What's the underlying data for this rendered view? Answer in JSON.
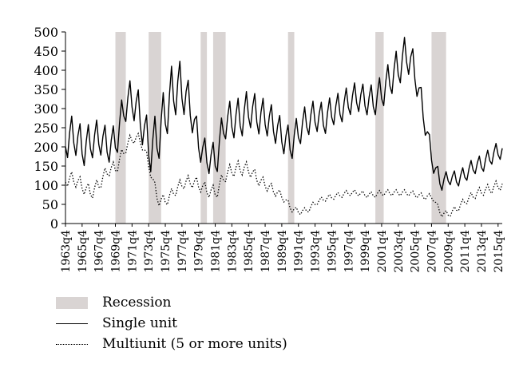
{
  "chart_data": {
    "type": "line",
    "ylim": [
      0,
      500
    ],
    "yticks": [
      0,
      50,
      100,
      150,
      200,
      250,
      300,
      350,
      400,
      450,
      500
    ],
    "x_start": "1963q4",
    "xticks": [
      "1963q4",
      "1965q4",
      "1967q4",
      "1969q4",
      "1971q4",
      "1973q4",
      "1975q4",
      "1977q4",
      "1979q4",
      "1981q4",
      "1983q4",
      "1985q4",
      "1987q4",
      "1989q4",
      "1991q4",
      "1993q4",
      "1995q4",
      "1997q4",
      "1999q4",
      "2001q4",
      "2003q4",
      "2005q4",
      "2007q4",
      "2009q4",
      "2011q4",
      "2013q4",
      "2015q4"
    ],
    "recessions": [
      [
        "1969q4",
        "1970q4"
      ],
      [
        "1973q4",
        "1975q1"
      ],
      [
        "1980q1",
        "1980q3"
      ],
      [
        "1981q3",
        "1982q4"
      ],
      [
        "1990q3",
        "1991q1"
      ],
      [
        "2001q1",
        "2001q4"
      ],
      [
        "2007q4",
        "2009q2"
      ]
    ],
    "legend": {
      "recession": "Recession",
      "single": "Single unit",
      "multi": "Multiunit (5 or more units)"
    },
    "series": [
      {
        "name": "Single unit",
        "style": "solid",
        "annual_mean": [
          [
            "1964",
            220
          ],
          [
            "1965",
            230
          ],
          [
            "1966",
            195
          ],
          [
            "1967",
            215
          ],
          [
            "1968",
            225
          ],
          [
            "1969",
            200
          ],
          [
            "1970",
            215
          ],
          [
            "1971",
            310
          ],
          [
            "1972",
            325
          ],
          [
            "1973",
            270
          ],
          [
            "1974",
            190
          ],
          [
            "1975",
            225
          ],
          [
            "1976",
            295
          ],
          [
            "1977",
            355
          ],
          [
            "1978",
            350
          ],
          [
            "1979",
            295
          ],
          [
            "1980",
            200
          ],
          [
            "1981",
            170
          ],
          [
            "1982",
            165
          ],
          [
            "1983",
            265
          ],
          [
            "1984",
            270
          ],
          [
            "1985",
            275
          ],
          [
            "1986",
            300
          ],
          [
            "1987",
            280
          ],
          [
            "1988",
            275
          ],
          [
            "1989",
            255
          ],
          [
            "1990",
            225
          ],
          [
            "1991",
            205
          ],
          [
            "1992",
            245
          ],
          [
            "1993",
            270
          ],
          [
            "1994",
            280
          ],
          [
            "1995",
            270
          ],
          [
            "1996",
            295
          ],
          [
            "1997",
            300
          ],
          [
            "1998",
            320
          ],
          [
            "1999",
            330
          ],
          [
            "2000",
            320
          ],
          [
            "2001",
            320
          ],
          [
            "2002",
            345
          ],
          [
            "2003",
            380
          ],
          [
            "2004",
            410
          ],
          [
            "2005",
            445
          ],
          [
            "2006",
            385
          ],
          [
            "2007",
            275
          ],
          [
            "2008",
            160
          ],
          [
            "2009",
            105
          ],
          [
            "2010",
            120
          ],
          [
            "2011",
            115
          ],
          [
            "2012",
            130
          ],
          [
            "2013",
            150
          ],
          [
            "2014",
            155
          ],
          [
            "2015",
            175
          ],
          [
            "2016",
            190
          ]
        ],
        "seasonal_amplitude": [
          [
            "1964",
            55
          ],
          [
            "1970",
            45
          ],
          [
            "1977",
            80
          ],
          [
            "1980",
            40
          ],
          [
            "1985",
            55
          ],
          [
            "1990",
            45
          ],
          [
            "2000",
            40
          ],
          [
            "2005",
            55
          ],
          [
            "2008",
            25
          ],
          [
            "2010",
            20
          ],
          [
            "2016",
            25
          ]
        ]
      },
      {
        "name": "Multiunit (5 or more units)",
        "style": "dotted",
        "annual_mean": [
          [
            "1964",
            115
          ],
          [
            "1965",
            115
          ],
          [
            "1966",
            95
          ],
          [
            "1967",
            80
          ],
          [
            "1968",
            105
          ],
          [
            "1969",
            140
          ],
          [
            "1970",
            145
          ],
          [
            "1971",
            195
          ],
          [
            "1972",
            225
          ],
          [
            "1973",
            215
          ],
          [
            "1974",
            145
          ],
          [
            "1975",
            60
          ],
          [
            "1976",
            60
          ],
          [
            "1977",
            85
          ],
          [
            "1978",
            105
          ],
          [
            "1979",
            110
          ],
          [
            "1980",
            100
          ],
          [
            "1981",
            85
          ],
          [
            "1982",
            80
          ],
          [
            "1983",
            125
          ],
          [
            "1984",
            140
          ],
          [
            "1985",
            145
          ],
          [
            "1986",
            140
          ],
          [
            "1987",
            115
          ],
          [
            "1988",
            100
          ],
          [
            "1989",
            85
          ],
          [
            "1990",
            70
          ],
          [
            "1991",
            40
          ],
          [
            "1992",
            30
          ],
          [
            "1993",
            35
          ],
          [
            "1994",
            55
          ],
          [
            "1995",
            65
          ],
          [
            "1996",
            70
          ],
          [
            "1997",
            75
          ],
          [
            "1998",
            80
          ],
          [
            "1999",
            80
          ],
          [
            "2000",
            75
          ],
          [
            "2001",
            75
          ],
          [
            "2002",
            80
          ],
          [
            "2003",
            80
          ],
          [
            "2004",
            80
          ],
          [
            "2005",
            80
          ],
          [
            "2006",
            75
          ],
          [
            "2007",
            70
          ],
          [
            "2008",
            70
          ],
          [
            "2009",
            25
          ],
          [
            "2010",
            25
          ],
          [
            "2011",
            40
          ],
          [
            "2012",
            60
          ],
          [
            "2013",
            75
          ],
          [
            "2014",
            85
          ],
          [
            "2015",
            90
          ],
          [
            "2016",
            100
          ]
        ],
        "seasonal_amplitude": [
          [
            "1964",
            20
          ],
          [
            "1975",
            15
          ],
          [
            "1985",
            20
          ],
          [
            "1992",
            8
          ],
          [
            "2009",
            8
          ],
          [
            "2016",
            15
          ]
        ]
      }
    ]
  }
}
